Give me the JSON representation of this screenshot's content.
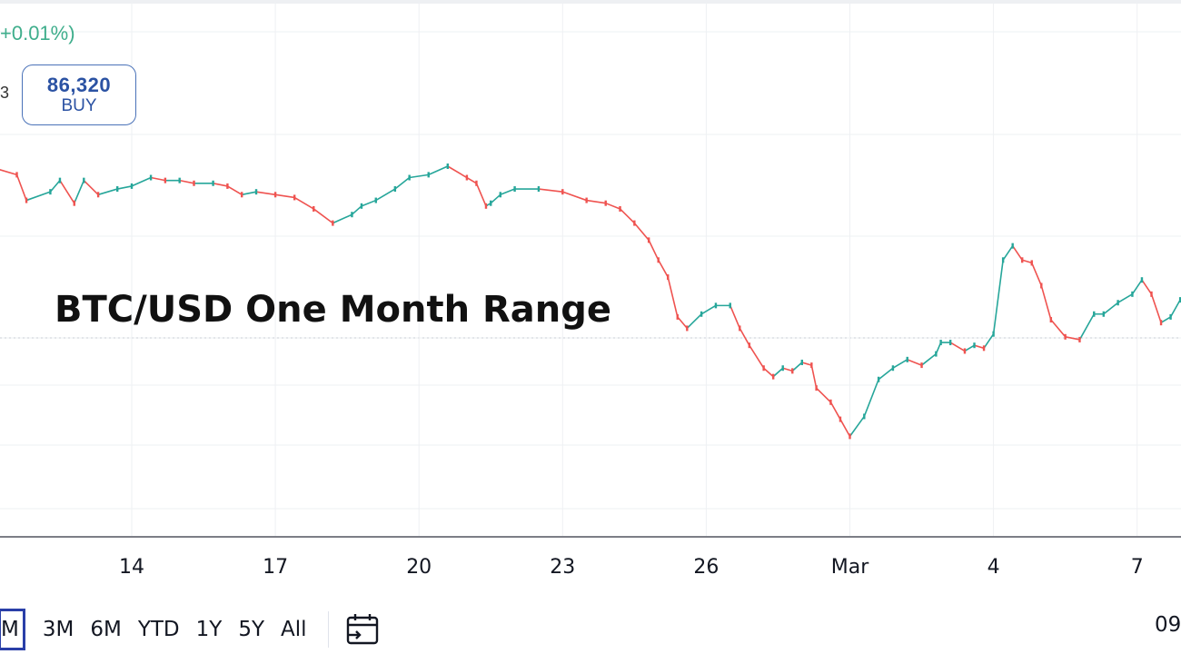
{
  "header": {
    "change_text": "+0.01%)",
    "side_char": "3",
    "buy": {
      "price": "86,320",
      "label": "BUY"
    }
  },
  "overlay": {
    "title": "BTC/USD One Month Range"
  },
  "toolbar": {
    "timeframes": [
      {
        "label": "M",
        "active": true
      },
      {
        "label": "3M",
        "active": false
      },
      {
        "label": "6M",
        "active": false
      },
      {
        "label": "YTD",
        "active": false
      },
      {
        "label": "1Y",
        "active": false
      },
      {
        "label": "5Y",
        "active": false
      },
      {
        "label": "All",
        "active": false
      }
    ],
    "calendar_icon": "calendar-goto-icon",
    "clock_text": "09"
  },
  "colors": {
    "up": "#26a69a",
    "down": "#ef5350",
    "grid": "#eef0f3",
    "axis": "#131722",
    "buy_border": "#4a72b8",
    "change_positive": "#3fae8c"
  },
  "chart_data": {
    "type": "line",
    "title": "BTC/USD One Month Range",
    "x_tick_labels": [
      "14",
      "17",
      "20",
      "23",
      "26",
      "Mar",
      "4",
      "7"
    ],
    "x_tick_days": [
      14,
      17,
      20,
      23,
      26,
      29,
      32,
      35
    ],
    "x_range_days": [
      11.2,
      35.9
    ],
    "series": [
      {
        "x_days": [
          11.2,
          11.6,
          11.8,
          12.3,
          12.5,
          12.8,
          13.0,
          13.3,
          13.7,
          14.0,
          14.4,
          14.7,
          15.0,
          15.3,
          15.7,
          16.0,
          16.3,
          16.6,
          17.0,
          17.4,
          17.8,
          18.2,
          18.6,
          18.8,
          19.1,
          19.5,
          19.8,
          20.2,
          20.6,
          21.0,
          21.2,
          21.4,
          21.5,
          21.7,
          22.0,
          22.5,
          23.0,
          23.5,
          23.9,
          24.2,
          24.5,
          24.8,
          25.0,
          25.2,
          25.4,
          25.6,
          25.9,
          26.2,
          26.5,
          26.7,
          26.9,
          27.2,
          27.4,
          27.6,
          27.8,
          28.0,
          28.2,
          28.3,
          28.6,
          28.8,
          29.0,
          29.3,
          29.6,
          29.9,
          30.2,
          30.5,
          30.8,
          30.9,
          31.1,
          31.4,
          31.6,
          31.8,
          32.0,
          32.2,
          32.4,
          32.6,
          32.8,
          33.0,
          33.2,
          33.5,
          33.8,
          34.1,
          34.3,
          34.6,
          34.9,
          35.1,
          35.3,
          35.5,
          35.7,
          35.9
        ],
        "y_rel": [
          0.99,
          0.97,
          0.88,
          0.91,
          0.95,
          0.87,
          0.95,
          0.9,
          0.92,
          0.93,
          0.96,
          0.95,
          0.95,
          0.94,
          0.94,
          0.93,
          0.9,
          0.91,
          0.9,
          0.89,
          0.85,
          0.8,
          0.83,
          0.86,
          0.88,
          0.92,
          0.96,
          0.97,
          1.0,
          0.96,
          0.94,
          0.86,
          0.87,
          0.9,
          0.92,
          0.92,
          0.91,
          0.88,
          0.87,
          0.85,
          0.8,
          0.74,
          0.67,
          0.61,
          0.47,
          0.43,
          0.48,
          0.51,
          0.51,
          0.43,
          0.37,
          0.29,
          0.26,
          0.29,
          0.28,
          0.31,
          0.3,
          0.22,
          0.17,
          0.11,
          0.05,
          0.12,
          0.25,
          0.29,
          0.32,
          0.3,
          0.34,
          0.38,
          0.38,
          0.35,
          0.37,
          0.36,
          0.41,
          0.67,
          0.72,
          0.67,
          0.66,
          0.58,
          0.46,
          0.4,
          0.39,
          0.48,
          0.48,
          0.52,
          0.55,
          0.6,
          0.55,
          0.45,
          0.47,
          0.53
        ],
        "y_rel_note": "relative position in chart range"
      }
    ],
    "grid": true
  }
}
